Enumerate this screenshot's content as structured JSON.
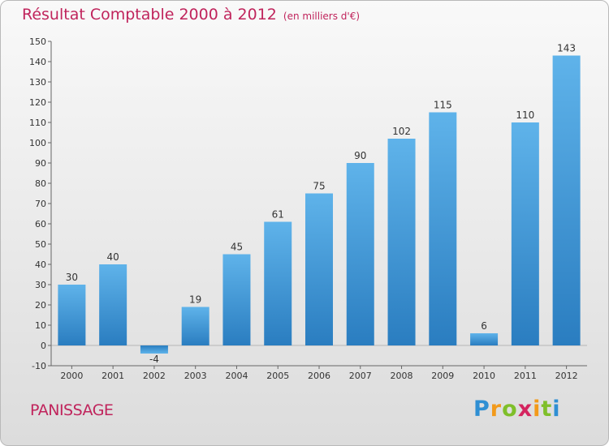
{
  "title": "Résultat Comptable 2000 à 2012",
  "subtitle": "(en milliers d'€)",
  "commune": "PANISSAGE",
  "logo": {
    "p": "P",
    "r": "r",
    "o": "o",
    "x": "x",
    "i1": "i",
    "t": "t",
    "i2": "i"
  },
  "colors": {
    "title": "#c0245c",
    "bar_top": "#5fb3ea",
    "bar_bottom": "#2a7dc0"
  },
  "chart_data": {
    "type": "bar",
    "title": "Résultat Comptable 2000 à 2012",
    "ylabel": "en milliers d'€",
    "xlabel": "",
    "categories": [
      "2000",
      "2001",
      "2002",
      "2003",
      "2004",
      "2005",
      "2006",
      "2007",
      "2008",
      "2009",
      "2010",
      "2011",
      "2012"
    ],
    "values": [
      30,
      40,
      -4,
      19,
      45,
      61,
      75,
      90,
      102,
      115,
      6,
      110,
      143
    ],
    "ylim": [
      -10,
      150
    ],
    "yticks": [
      -10,
      0,
      10,
      20,
      30,
      40,
      50,
      60,
      70,
      80,
      90,
      100,
      110,
      120,
      130,
      140,
      150
    ],
    "grid": false
  }
}
